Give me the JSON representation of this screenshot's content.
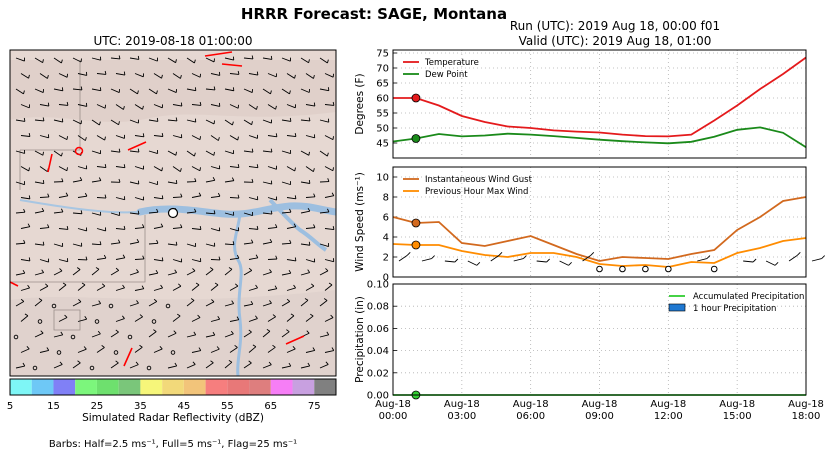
{
  "figure": {
    "title": "HRRR Forecast: SAGE, Montana",
    "map_title": "UTC: 2019-08-18 01:00:00",
    "run_line": "Run (UTC): 2019 Aug 18, 00:00 f01",
    "valid_line": "Valid (UTC): 2019 Aug 18, 01:00",
    "barbs_note": "Barbs: Half=2.5 ms⁻¹, Full=5 ms⁻¹, Flag=25 ms⁻¹"
  },
  "colors": {
    "temperature": "#e41a1c",
    "dewpoint": "#1a8a1a",
    "gust": "#d2691e",
    "maxwind": "#ff8c00",
    "accum_precip": "#32cd32",
    "hourly_precip": "#1f78d1",
    "map_bg": "#e6d8d2",
    "river": "#9dbfe0"
  },
  "colorbar": {
    "label": "Simulated Radar Reflectivity (dBZ)",
    "ticks": [
      "5",
      "15",
      "25",
      "35",
      "45",
      "55",
      "65",
      "75"
    ],
    "colors": [
      "#7ef6f6",
      "#6ec8f6",
      "#8080f6",
      "#7cf67c",
      "#6ee06e",
      "#7ac67a",
      "#f6f67a",
      "#f2d97a",
      "#f2c47a",
      "#f67e7e",
      "#e87878",
      "#de7e7e",
      "#f67ef6",
      "#c8a0e0",
      "#808080"
    ]
  },
  "map_icons": [
    "current-location-marker-icon",
    "wind-barb-icon"
  ],
  "chart_data": [
    {
      "type": "line",
      "title": "",
      "ylabel": "Degrees (F)",
      "ylim": [
        40,
        76
      ],
      "yticks": [
        "45",
        "50",
        "55",
        "60",
        "65",
        "70",
        "75"
      ],
      "xlim": [
        0,
        18
      ],
      "legend": "top-left",
      "grid": true,
      "x": [
        0,
        1,
        2,
        3,
        4,
        5,
        6,
        7,
        8,
        9,
        10,
        11,
        12,
        13,
        14,
        15,
        16,
        17,
        18
      ],
      "series": [
        {
          "name": "Temperature",
          "color_key": "temperature",
          "values": [
            60,
            60,
            57.5,
            54,
            52,
            50.5,
            50,
            49.2,
            48.8,
            48.5,
            47.8,
            47.3,
            47.2,
            47.8,
            52.5,
            57.5,
            63,
            68,
            73.5
          ]
        },
        {
          "name": "Dew Point",
          "color_key": "dewpoint",
          "values": [
            45.5,
            46.5,
            48,
            47.2,
            47.5,
            48.1,
            47.8,
            47.3,
            46.7,
            46.1,
            45.6,
            45.2,
            44.9,
            45.4,
            47.1,
            49.4,
            50.2,
            48.4,
            43.6
          ]
        }
      ],
      "markers": [
        {
          "x": 1,
          "y": 60,
          "color_key": "temperature"
        },
        {
          "x": 1,
          "y": 46.5,
          "color_key": "dewpoint"
        }
      ]
    },
    {
      "type": "line",
      "title": "",
      "ylabel": "Wind Speed (ms⁻¹)",
      "ylim": [
        0,
        11
      ],
      "yticks": [
        "0",
        "2",
        "4",
        "6",
        "8",
        "10"
      ],
      "xlim": [
        0,
        18
      ],
      "legend": "top-left",
      "grid": true,
      "x": [
        0,
        1,
        2,
        3,
        4,
        5,
        6,
        7,
        8,
        9,
        10,
        11,
        12,
        13,
        14,
        15,
        16,
        17,
        18
      ],
      "series": [
        {
          "name": "Instantaneous Wind Gust",
          "color_key": "gust",
          "values": [
            6,
            5.4,
            5.5,
            3.4,
            3.1,
            3.6,
            4.1,
            3.2,
            2.3,
            1.6,
            2,
            1.9,
            1.8,
            2.3,
            2.7,
            4.7,
            6,
            7.6,
            8
          ]
        },
        {
          "name": "Previous Hour Max Wind",
          "color_key": "maxwind",
          "values": [
            3.3,
            3.2,
            3.2,
            2.6,
            2.2,
            2,
            2.4,
            2.4,
            2,
            1.3,
            1.1,
            1.2,
            1,
            1.5,
            1.4,
            2.4,
            2.9,
            3.6,
            3.9
          ]
        }
      ],
      "markers": [
        {
          "x": 1,
          "y": 5.4,
          "color_key": "gust"
        },
        {
          "x": 1,
          "y": 3.2,
          "color_key": "maxwind"
        }
      ],
      "calm_circles_x": [
        9,
        10,
        11,
        12,
        14
      ]
    },
    {
      "type": "bar",
      "title": "",
      "ylabel": "Precipitation (in)",
      "ylim": [
        0,
        0.1
      ],
      "yticks": [
        "0.00",
        "0.02",
        "0.04",
        "0.06",
        "0.08",
        "0.10"
      ],
      "xlim": [
        0,
        18
      ],
      "legend": "right",
      "grid": true,
      "x": [
        0,
        1,
        2,
        3,
        4,
        5,
        6,
        7,
        8,
        9,
        10,
        11,
        12,
        13,
        14,
        15,
        16,
        17,
        18
      ],
      "series": [
        {
          "name": "Accumulated Precipitation",
          "color_key": "accum_precip",
          "values": [
            0,
            0,
            0,
            0,
            0,
            0,
            0,
            0,
            0,
            0,
            0,
            0,
            0,
            0,
            0,
            0,
            0,
            0,
            0
          ]
        },
        {
          "name": "1 hour Precipitation",
          "color_key": "hourly_precip",
          "values": [
            0,
            0,
            0,
            0,
            0,
            0,
            0,
            0,
            0,
            0,
            0,
            0,
            0,
            0,
            0,
            0,
            0,
            0,
            0
          ]
        }
      ],
      "markers": [
        {
          "x": 1,
          "y": 0,
          "color_key": "accum_precip"
        }
      ],
      "xtick_labels": [
        {
          "x": 0,
          "line1": "Aug-18",
          "line2": "00:00"
        },
        {
          "x": 3,
          "line1": "Aug-18",
          "line2": "03:00"
        },
        {
          "x": 6,
          "line1": "Aug-18",
          "line2": "06:00"
        },
        {
          "x": 9,
          "line1": "Aug-18",
          "line2": "09:00"
        },
        {
          "x": 12,
          "line1": "Aug-18",
          "line2": "12:00"
        },
        {
          "x": 15,
          "line1": "Aug-18",
          "line2": "15:00"
        },
        {
          "x": 18,
          "line1": "Aug-18",
          "line2": "18:00"
        }
      ]
    }
  ]
}
